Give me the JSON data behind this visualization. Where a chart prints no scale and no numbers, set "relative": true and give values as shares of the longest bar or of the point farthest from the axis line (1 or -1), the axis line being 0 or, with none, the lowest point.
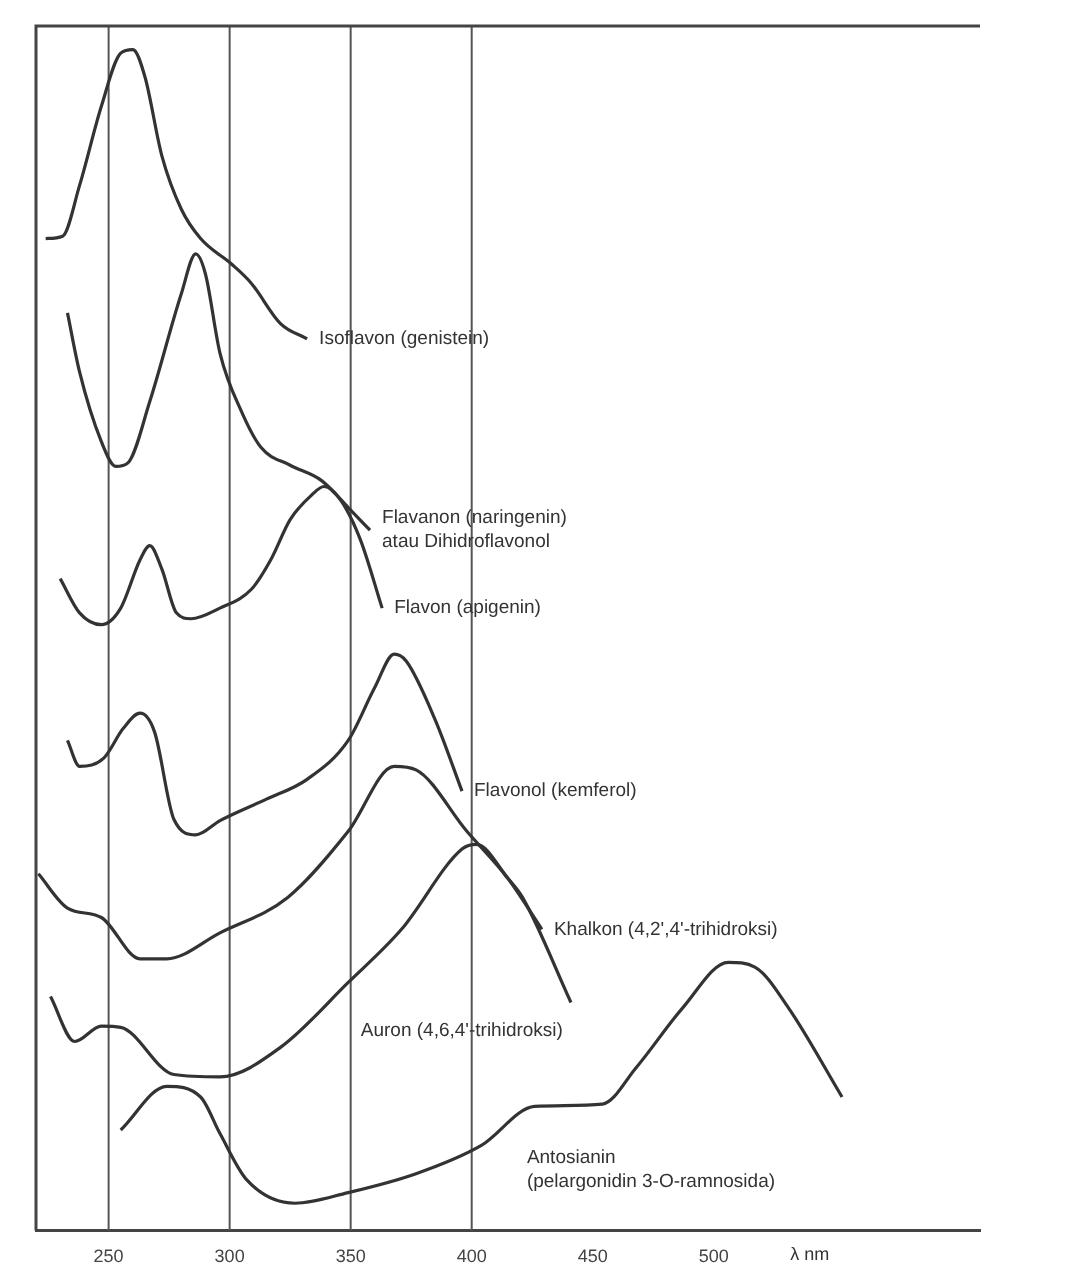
{
  "chart_data": {
    "type": "line",
    "relative": true,
    "xlabel": "λ nm",
    "xlim": [
      220,
      610
    ],
    "xticks": [
      250,
      300,
      350,
      400,
      450,
      500
    ],
    "tick_labels": "x",
    "legend": false,
    "marker": "none",
    "ref_lines": [
      {
        "axis": "x",
        "value": 250,
        "color": "#555555"
      },
      {
        "axis": "x",
        "value": 300,
        "color": "#555555"
      },
      {
        "axis": "x",
        "value": 350,
        "color": "#555555"
      },
      {
        "axis": "x",
        "value": 400,
        "color": "#555555"
      }
    ],
    "series": [
      {
        "name": "Isoflavon (genistein)",
        "color": "#333333",
        "x": [
          224,
          231,
          238,
          247,
          255,
          260,
          265,
          272,
          280,
          288,
          301,
          309,
          321,
          332
        ],
        "values": [
          0.84,
          0.842,
          0.885,
          0.952,
          0.997,
          1,
          0.977,
          0.91,
          0.865,
          0.84,
          0.818,
          0.802,
          0.768,
          0.755
        ]
      },
      {
        "name": "Flavanon (naringenin)\natau Dihidroflavonol",
        "color": "#333333",
        "x": [
          233,
          238,
          247,
          253,
          258,
          267,
          280,
          286,
          290,
          296,
          305,
          313,
          325,
          338,
          350,
          358
        ],
        "values": [
          0.777,
          0.727,
          0.668,
          0.647,
          0.65,
          0.702,
          0.793,
          0.827,
          0.81,
          0.743,
          0.693,
          0.663,
          0.648,
          0.635,
          0.61,
          0.593
        ]
      },
      {
        "name": "Flavon (apigenin)",
        "color": "#333333",
        "x": [
          230,
          238,
          247,
          255,
          263,
          267,
          272,
          278,
          284,
          296,
          309,
          317,
          325,
          334,
          339,
          346,
          354,
          363
        ],
        "values": [
          0.552,
          0.523,
          0.513,
          0.527,
          0.568,
          0.58,
          0.56,
          0.523,
          0.518,
          0.527,
          0.543,
          0.568,
          0.602,
          0.623,
          0.63,
          0.618,
          0.585,
          0.527
        ]
      },
      {
        "name": "Flavonol (kemferol)",
        "color": "#333333",
        "x": [
          233,
          238,
          248,
          256,
          263,
          269,
          277,
          286,
          296,
          315,
          332,
          349,
          360,
          368,
          373,
          385,
          396
        ],
        "values": [
          0.415,
          0.393,
          0.4,
          0.425,
          0.438,
          0.422,
          0.348,
          0.335,
          0.347,
          0.365,
          0.382,
          0.415,
          0.46,
          0.488,
          0.482,
          0.432,
          0.372
        ]
      },
      {
        "name": "Khalkon (4,2',4'-trihidroksi)",
        "color": "#333333",
        "x": [
          221,
          233,
          247,
          263,
          274,
          296,
          324,
          349,
          368,
          377,
          398,
          415,
          429
        ],
        "values": [
          0.302,
          0.273,
          0.265,
          0.23,
          0.23,
          0.252,
          0.282,
          0.338,
          0.393,
          0.39,
          0.338,
          0.298,
          0.255
        ]
      },
      {
        "name": "Auron (4,6,4'-trihidroksi)",
        "color": "#333333",
        "x": [
          226,
          236,
          247,
          255,
          277,
          296,
          321,
          349,
          371,
          396,
          402,
          415,
          421,
          441
        ],
        "values": [
          0.198,
          0.16,
          0.173,
          0.172,
          0.132,
          0.13,
          0.155,
          0.21,
          0.255,
          0.323,
          0.327,
          0.298,
          0.282,
          0.193
        ]
      },
      {
        "name": "Antosianin\n(pelargonidin 3-O-ramnosida)",
        "color": "#333333",
        "x": [
          255,
          274,
          288,
          296,
          307,
          327,
          349,
          377,
          404,
          426,
          454,
          468,
          487,
          506,
          517,
          531,
          553
        ],
        "values": [
          0.085,
          0.122,
          0.113,
          0.082,
          0.043,
          0.023,
          0.032,
          0.048,
          0.072,
          0.105,
          0.107,
          0.138,
          0.188,
          0.227,
          0.223,
          0.188,
          0.113
        ]
      }
    ]
  }
}
